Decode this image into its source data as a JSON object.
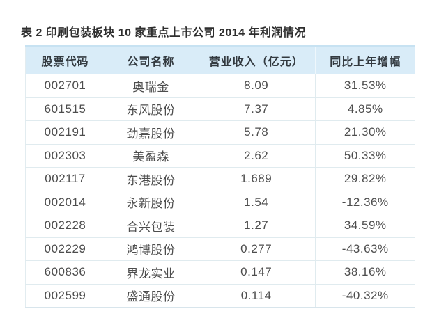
{
  "title": "表 2 印刷包装板块 10 家重点上市公司 2014 年利润情况",
  "table": {
    "columns": [
      "股票代码",
      "公司名称",
      "营业收入（亿元）",
      "同比上年增幅"
    ],
    "column_keys": [
      "stock-code",
      "company-name",
      "revenue",
      "yoy-growth"
    ],
    "rows": [
      [
        "002701",
        "奥瑞金",
        "8.09",
        "31.53%"
      ],
      [
        "601515",
        "东风股份",
        "7.37",
        "4.85%"
      ],
      [
        "002191",
        "劲嘉股份",
        "5.78",
        "21.30%"
      ],
      [
        "002303",
        "美盈森",
        "2.62",
        "50.33%"
      ],
      [
        "002117",
        "东港股份",
        "1.689",
        "29.82%"
      ],
      [
        "002014",
        "永新股份",
        "1.54",
        "-12.36%"
      ],
      [
        "002228",
        "合兴包装",
        "1.27",
        "34.59%"
      ],
      [
        "002229",
        "鸿博股份",
        "0.277",
        "-43.63%"
      ],
      [
        "600836",
        "界龙实业",
        "0.147",
        "38.16%"
      ],
      [
        "002599",
        "盛通股份",
        "0.114",
        "-40.32%"
      ]
    ]
  },
  "colors": {
    "header_bg": "#d9ecf8",
    "header_top_border": "#c7e2f2",
    "row_border": "#e0ebef",
    "title_text": "#2e2e2e",
    "cell_text": "#4d4d4d",
    "page_bg": "#ffffff"
  }
}
